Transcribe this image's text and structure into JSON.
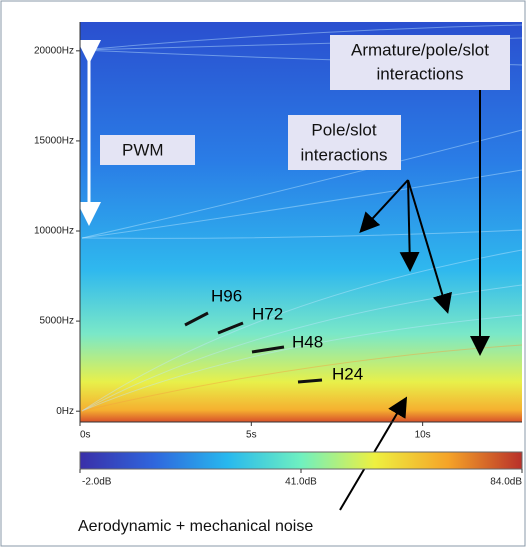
{
  "chart_data": {
    "type": "spectrogram",
    "xlim": [
      0,
      12.9
    ],
    "xticks": [
      {
        "value": 0,
        "label": "0s"
      },
      {
        "value": 5,
        "label": "5s"
      },
      {
        "value": 10,
        "label": "10s"
      }
    ],
    "ylim": [
      -600,
      21600
    ],
    "yticks": [
      {
        "value": 0,
        "label": "0Hz"
      },
      {
        "value": 5000,
        "label": "5000Hz"
      },
      {
        "value": 10000,
        "label": "10000Hz"
      },
      {
        "value": 15000,
        "label": "15000Hz"
      },
      {
        "value": 20000,
        "label": "20000Hz"
      }
    ],
    "clim": [
      -2,
      84
    ],
    "cticks": [
      {
        "value": -2,
        "label": "-2.0dB"
      },
      {
        "value": 41,
        "label": "41.0dB"
      },
      {
        "value": 84,
        "label": "84.0dB"
      }
    ],
    "colormap": [
      "#3a2fa8",
      "#2f66dd",
      "#27b8ee",
      "#6ff0c0",
      "#eef040",
      "#f5a328",
      "#b8302a"
    ],
    "annotations": {
      "pwm": "PWM",
      "armature": [
        "Armature/pole/slot",
        "interactions"
      ],
      "pole_slot": [
        "Pole/slot",
        "interactions"
      ],
      "h96": "H96",
      "h72": "H72",
      "h48": "H48",
      "h24": "H24",
      "noise": "Aerodynamic + mechanical noise"
    }
  }
}
